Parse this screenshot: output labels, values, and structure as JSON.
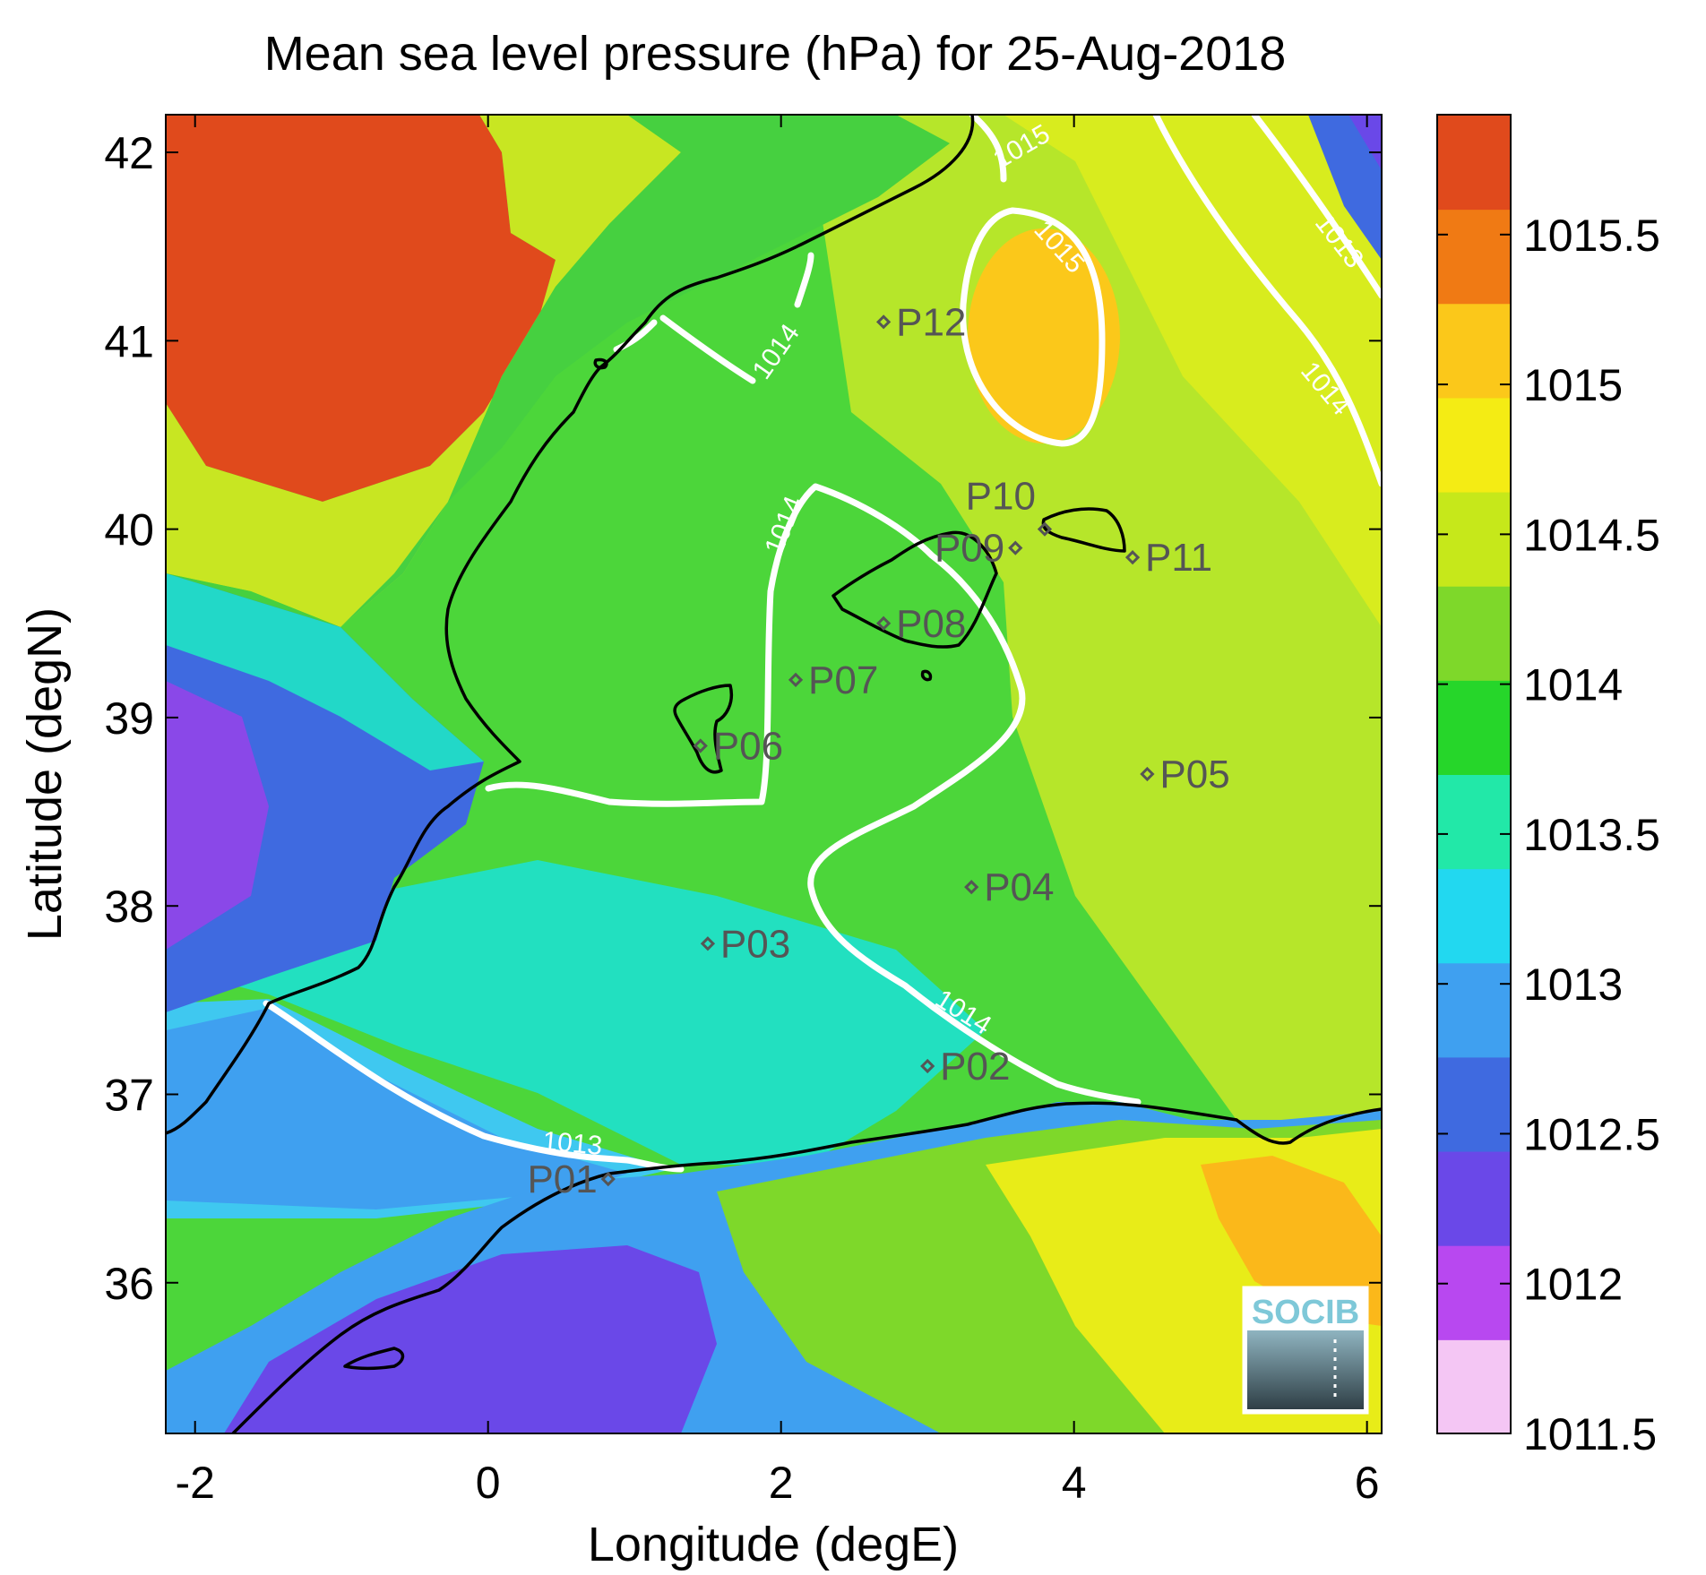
{
  "title": "Mean sea level pressure (hPa) for 25-Aug-2018",
  "xlabel": "Longitude (degE)",
  "ylabel": "Latitude (degN)",
  "logo_text": "SOCIB",
  "chart_data": {
    "type": "heatmap",
    "title": "Mean sea level pressure (hPa) for 25-Aug-2018",
    "xlabel": "Longitude (degE)",
    "ylabel": "Latitude (degN)",
    "xlim": [
      -2.2,
      6.1
    ],
    "ylim": [
      35.2,
      42.2
    ],
    "xticks": [
      -2,
      0,
      2,
      4,
      6
    ],
    "yticks": [
      36,
      37,
      38,
      39,
      40,
      41,
      42
    ],
    "colorbar": {
      "range": [
        1011.5,
        1015.9
      ],
      "ticks": [
        1011.5,
        1012,
        1012.5,
        1013,
        1013.5,
        1014,
        1014.5,
        1015,
        1015.5
      ],
      "tick_labels": [
        "1011.5",
        "1012",
        "1012.5",
        "1013",
        "1013.5",
        "1014",
        "1014.5",
        "1015",
        "1015.5"
      ],
      "colormap": [
        "#f4c6f4",
        "#b848f0",
        "#6a48e8",
        "#3f6ae0",
        "#3fa0f0",
        "#22d8f0",
        "#22e8a8",
        "#26d62a",
        "#7ed82a",
        "#c6e81a",
        "#f4ec14",
        "#fbc81a",
        "#f07a14",
        "#e04a1c"
      ]
    },
    "contours": [
      {
        "level": 1013,
        "label": "1013"
      },
      {
        "level": 1014,
        "label": "1014"
      },
      {
        "level": 1015,
        "label": "1015"
      }
    ],
    "stations": [
      {
        "name": "P01",
        "lon": 0.82,
        "lat": 36.55
      },
      {
        "name": "P02",
        "lon": 3.0,
        "lat": 37.15
      },
      {
        "name": "P03",
        "lon": 1.5,
        "lat": 37.8
      },
      {
        "name": "P04",
        "lon": 3.3,
        "lat": 38.1
      },
      {
        "name": "P05",
        "lon": 4.5,
        "lat": 38.7
      },
      {
        "name": "P06",
        "lon": 1.45,
        "lat": 38.85
      },
      {
        "name": "P07",
        "lon": 2.1,
        "lat": 39.2
      },
      {
        "name": "P08",
        "lon": 2.7,
        "lat": 39.5
      },
      {
        "name": "P09",
        "lon": 3.6,
        "lat": 39.9
      },
      {
        "name": "P10",
        "lon": 3.8,
        "lat": 40.0
      },
      {
        "name": "P11",
        "lon": 4.4,
        "lat": 39.85
      },
      {
        "name": "P12",
        "lon": 2.7,
        "lat": 41.1
      }
    ]
  }
}
